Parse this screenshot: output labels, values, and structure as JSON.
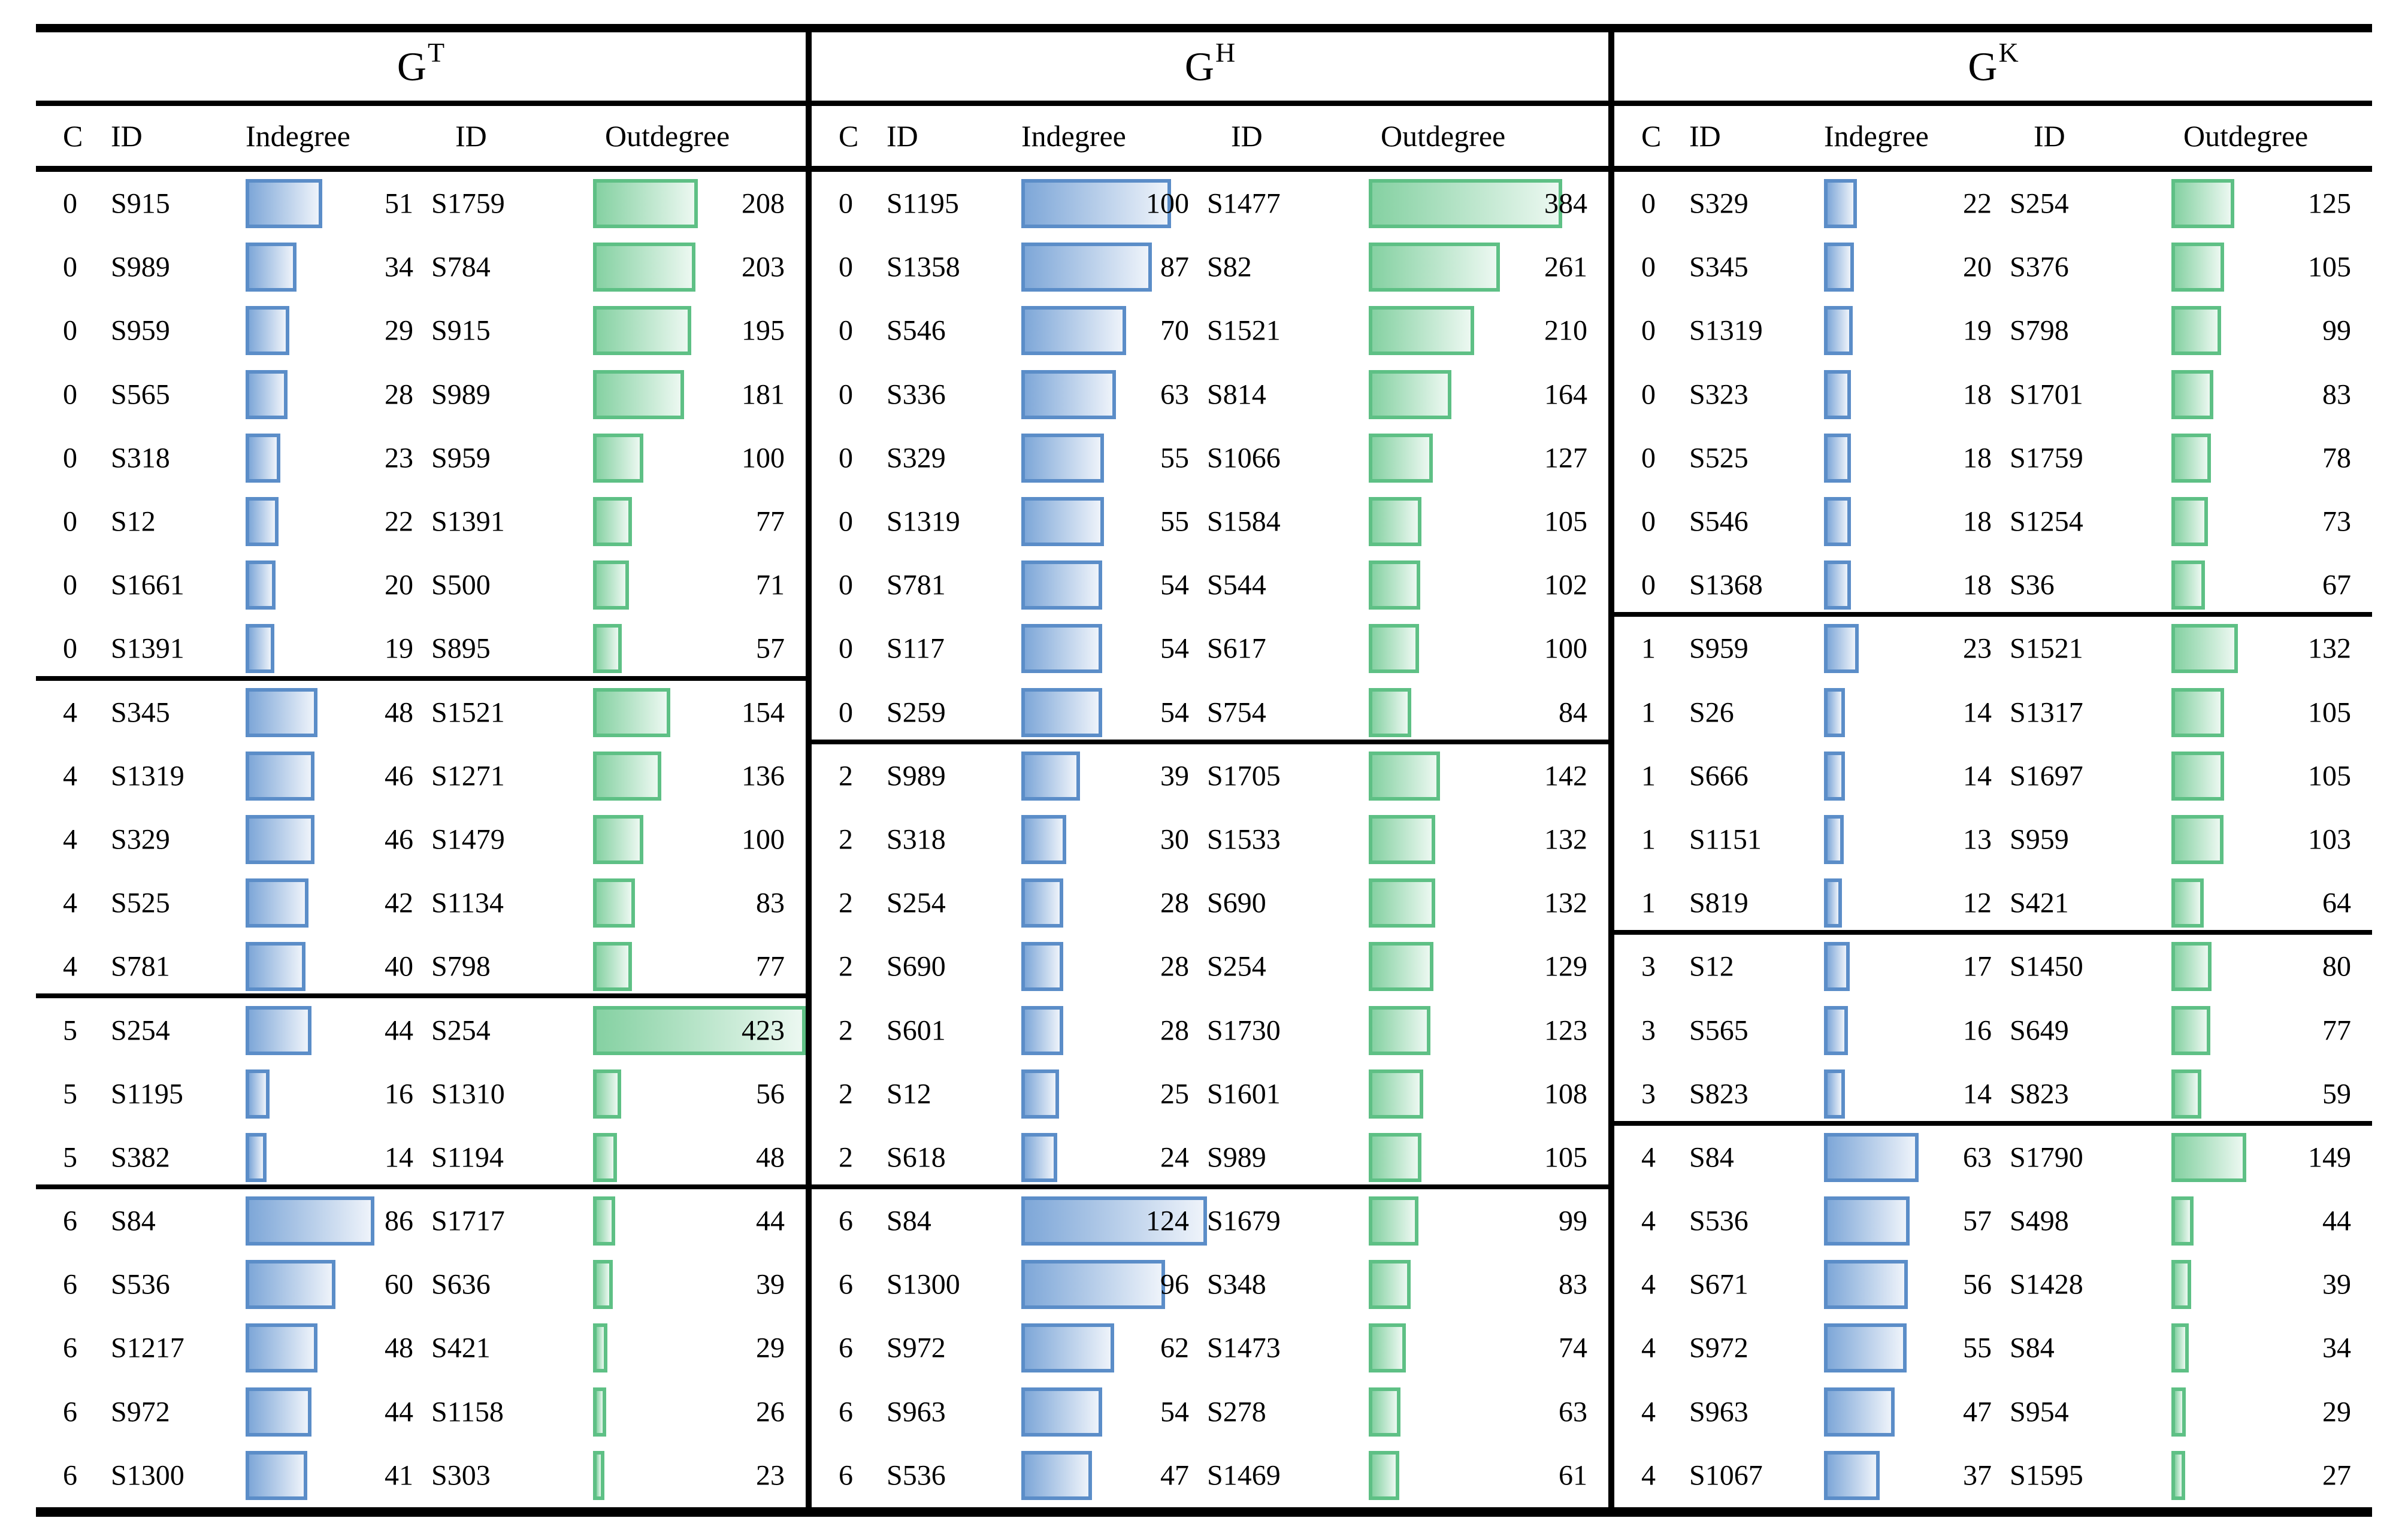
{
  "chart_data": {
    "type": "table",
    "colors": {
      "indegree_bar_border": "#5b8dc8",
      "indegree_bar_fill_left": "#7ea7d8",
      "indegree_bar_fill_right": "#eef3fa",
      "outdegree_bar_border": "#5ec085",
      "outdegree_bar_fill_left": "#85d1a2",
      "outdegree_bar_fill_right": "#ecf8f1",
      "rule_color": "#000000"
    },
    "panels": [
      {
        "title": "G",
        "title_sup": "T",
        "columns": [
          "C",
          "ID",
          "Indegree",
          "ID",
          "Outdegree"
        ],
        "groups": [
          {
            "rows": [
              {
                "c": "0",
                "in_id": "S915",
                "indegree": 51,
                "out_id": "S1759",
                "outdegree": 208
              },
              {
                "c": "0",
                "in_id": "S989",
                "indegree": 34,
                "out_id": "S784",
                "outdegree": 203
              },
              {
                "c": "0",
                "in_id": "S959",
                "indegree": 29,
                "out_id": "S915",
                "outdegree": 195
              },
              {
                "c": "0",
                "in_id": "S565",
                "indegree": 28,
                "out_id": "S989",
                "outdegree": 181
              },
              {
                "c": "0",
                "in_id": "S318",
                "indegree": 23,
                "out_id": "S959",
                "outdegree": 100
              },
              {
                "c": "0",
                "in_id": "S12",
                "indegree": 22,
                "out_id": "S1391",
                "outdegree": 77
              },
              {
                "c": "0",
                "in_id": "S1661",
                "indegree": 20,
                "out_id": "S500",
                "outdegree": 71
              },
              {
                "c": "0",
                "in_id": "S1391",
                "indegree": 19,
                "out_id": "S895",
                "outdegree": 57
              }
            ]
          },
          {
            "rows": [
              {
                "c": "4",
                "in_id": "S345",
                "indegree": 48,
                "out_id": "S1521",
                "outdegree": 154
              },
              {
                "c": "4",
                "in_id": "S1319",
                "indegree": 46,
                "out_id": "S1271",
                "outdegree": 136
              },
              {
                "c": "4",
                "in_id": "S329",
                "indegree": 46,
                "out_id": "S1479",
                "outdegree": 100
              },
              {
                "c": "4",
                "in_id": "S525",
                "indegree": 42,
                "out_id": "S1134",
                "outdegree": 83
              },
              {
                "c": "4",
                "in_id": "S781",
                "indegree": 40,
                "out_id": "S798",
                "outdegree": 77
              }
            ]
          },
          {
            "rows": [
              {
                "c": "5",
                "in_id": "S254",
                "indegree": 44,
                "out_id": "S254",
                "outdegree": 423
              },
              {
                "c": "5",
                "in_id": "S1195",
                "indegree": 16,
                "out_id": "S1310",
                "outdegree": 56
              },
              {
                "c": "5",
                "in_id": "S382",
                "indegree": 14,
                "out_id": "S1194",
                "outdegree": 48
              }
            ]
          },
          {
            "rows": [
              {
                "c": "6",
                "in_id": "S84",
                "indegree": 86,
                "out_id": "S1717",
                "outdegree": 44
              },
              {
                "c": "6",
                "in_id": "S536",
                "indegree": 60,
                "out_id": "S636",
                "outdegree": 39
              },
              {
                "c": "6",
                "in_id": "S1217",
                "indegree": 48,
                "out_id": "S421",
                "outdegree": 29
              },
              {
                "c": "6",
                "in_id": "S972",
                "indegree": 44,
                "out_id": "S1158",
                "outdegree": 26
              },
              {
                "c": "6",
                "in_id": "S1300",
                "indegree": 41,
                "out_id": "S303",
                "outdegree": 23
              }
            ]
          }
        ]
      },
      {
        "title": "G",
        "title_sup": "H",
        "columns": [
          "C",
          "ID",
          "Indegree",
          "ID",
          "Outdegree"
        ],
        "groups": [
          {
            "rows": [
              {
                "c": "0",
                "in_id": "S1195",
                "indegree": 100,
                "out_id": "S1477",
                "outdegree": 384
              },
              {
                "c": "0",
                "in_id": "S1358",
                "indegree": 87,
                "out_id": "S82",
                "outdegree": 261
              },
              {
                "c": "0",
                "in_id": "S546",
                "indegree": 70,
                "out_id": "S1521",
                "outdegree": 210
              },
              {
                "c": "0",
                "in_id": "S336",
                "indegree": 63,
                "out_id": "S814",
                "outdegree": 164
              },
              {
                "c": "0",
                "in_id": "S329",
                "indegree": 55,
                "out_id": "S1066",
                "outdegree": 127
              },
              {
                "c": "0",
                "in_id": "S1319",
                "indegree": 55,
                "out_id": "S1584",
                "outdegree": 105
              },
              {
                "c": "0",
                "in_id": "S781",
                "indegree": 54,
                "out_id": "S544",
                "outdegree": 102
              },
              {
                "c": "0",
                "in_id": "S117",
                "indegree": 54,
                "out_id": "S617",
                "outdegree": 100
              },
              {
                "c": "0",
                "in_id": "S259",
                "indegree": 54,
                "out_id": "S754",
                "outdegree": 84
              }
            ]
          },
          {
            "rows": [
              {
                "c": "2",
                "in_id": "S989",
                "indegree": 39,
                "out_id": "S1705",
                "outdegree": 142
              },
              {
                "c": "2",
                "in_id": "S318",
                "indegree": 30,
                "out_id": "S1533",
                "outdegree": 132
              },
              {
                "c": "2",
                "in_id": "S254",
                "indegree": 28,
                "out_id": "S690",
                "outdegree": 132
              },
              {
                "c": "2",
                "in_id": "S690",
                "indegree": 28,
                "out_id": "S254",
                "outdegree": 129
              },
              {
                "c": "2",
                "in_id": "S601",
                "indegree": 28,
                "out_id": "S1730",
                "outdegree": 123
              },
              {
                "c": "2",
                "in_id": "S12",
                "indegree": 25,
                "out_id": "S1601",
                "outdegree": 108
              },
              {
                "c": "2",
                "in_id": "S618",
                "indegree": 24,
                "out_id": "S989",
                "outdegree": 105
              }
            ]
          },
          {
            "rows": [
              {
                "c": "6",
                "in_id": "S84",
                "indegree": 124,
                "out_id": "S1679",
                "outdegree": 99
              },
              {
                "c": "6",
                "in_id": "S1300",
                "indegree": 96,
                "out_id": "S348",
                "outdegree": 83
              },
              {
                "c": "6",
                "in_id": "S972",
                "indegree": 62,
                "out_id": "S1473",
                "outdegree": 74
              },
              {
                "c": "6",
                "in_id": "S963",
                "indegree": 54,
                "out_id": "S278",
                "outdegree": 63
              },
              {
                "c": "6",
                "in_id": "S536",
                "indegree": 47,
                "out_id": "S1469",
                "outdegree": 61
              }
            ]
          }
        ]
      },
      {
        "title": "G",
        "title_sup": "K",
        "columns": [
          "C",
          "ID",
          "Indegree",
          "ID",
          "Outdegree"
        ],
        "groups": [
          {
            "rows": [
              {
                "c": "0",
                "in_id": "S329",
                "indegree": 22,
                "out_id": "S254",
                "outdegree": 125
              },
              {
                "c": "0",
                "in_id": "S345",
                "indegree": 20,
                "out_id": "S376",
                "outdegree": 105
              },
              {
                "c": "0",
                "in_id": "S1319",
                "indegree": 19,
                "out_id": "S798",
                "outdegree": 99
              },
              {
                "c": "0",
                "in_id": "S323",
                "indegree": 18,
                "out_id": "S1701",
                "outdegree": 83
              },
              {
                "c": "0",
                "in_id": "S525",
                "indegree": 18,
                "out_id": "S1759",
                "outdegree": 78
              },
              {
                "c": "0",
                "in_id": "S546",
                "indegree": 18,
                "out_id": "S1254",
                "outdegree": 73
              },
              {
                "c": "0",
                "in_id": "S1368",
                "indegree": 18,
                "out_id": "S36",
                "outdegree": 67
              }
            ]
          },
          {
            "rows": [
              {
                "c": "1",
                "in_id": "S959",
                "indegree": 23,
                "out_id": "S1521",
                "outdegree": 132
              },
              {
                "c": "1",
                "in_id": "S26",
                "indegree": 14,
                "out_id": "S1317",
                "outdegree": 105
              },
              {
                "c": "1",
                "in_id": "S666",
                "indegree": 14,
                "out_id": "S1697",
                "outdegree": 105
              },
              {
                "c": "1",
                "in_id": "S1151",
                "indegree": 13,
                "out_id": "S959",
                "outdegree": 103
              },
              {
                "c": "1",
                "in_id": "S819",
                "indegree": 12,
                "out_id": "S421",
                "outdegree": 64
              }
            ]
          },
          {
            "rows": [
              {
                "c": "3",
                "in_id": "S12",
                "indegree": 17,
                "out_id": "S1450",
                "outdegree": 80
              },
              {
                "c": "3",
                "in_id": "S565",
                "indegree": 16,
                "out_id": "S649",
                "outdegree": 77
              },
              {
                "c": "3",
                "in_id": "S823",
                "indegree": 14,
                "out_id": "S823",
                "outdegree": 59
              }
            ]
          },
          {
            "rows": [
              {
                "c": "4",
                "in_id": "S84",
                "indegree": 63,
                "out_id": "S1790",
                "outdegree": 149
              },
              {
                "c": "4",
                "in_id": "S536",
                "indegree": 57,
                "out_id": "S498",
                "outdegree": 44
              },
              {
                "c": "4",
                "in_id": "S671",
                "indegree": 56,
                "out_id": "S1428",
                "outdegree": 39
              },
              {
                "c": "4",
                "in_id": "S972",
                "indegree": 55,
                "out_id": "S84",
                "outdegree": 34
              },
              {
                "c": "4",
                "in_id": "S963",
                "indegree": 47,
                "out_id": "S954",
                "outdegree": 29
              },
              {
                "c": "4",
                "in_id": "S1067",
                "indegree": 37,
                "out_id": "S1595",
                "outdegree": 27
              }
            ]
          }
        ]
      }
    ]
  }
}
